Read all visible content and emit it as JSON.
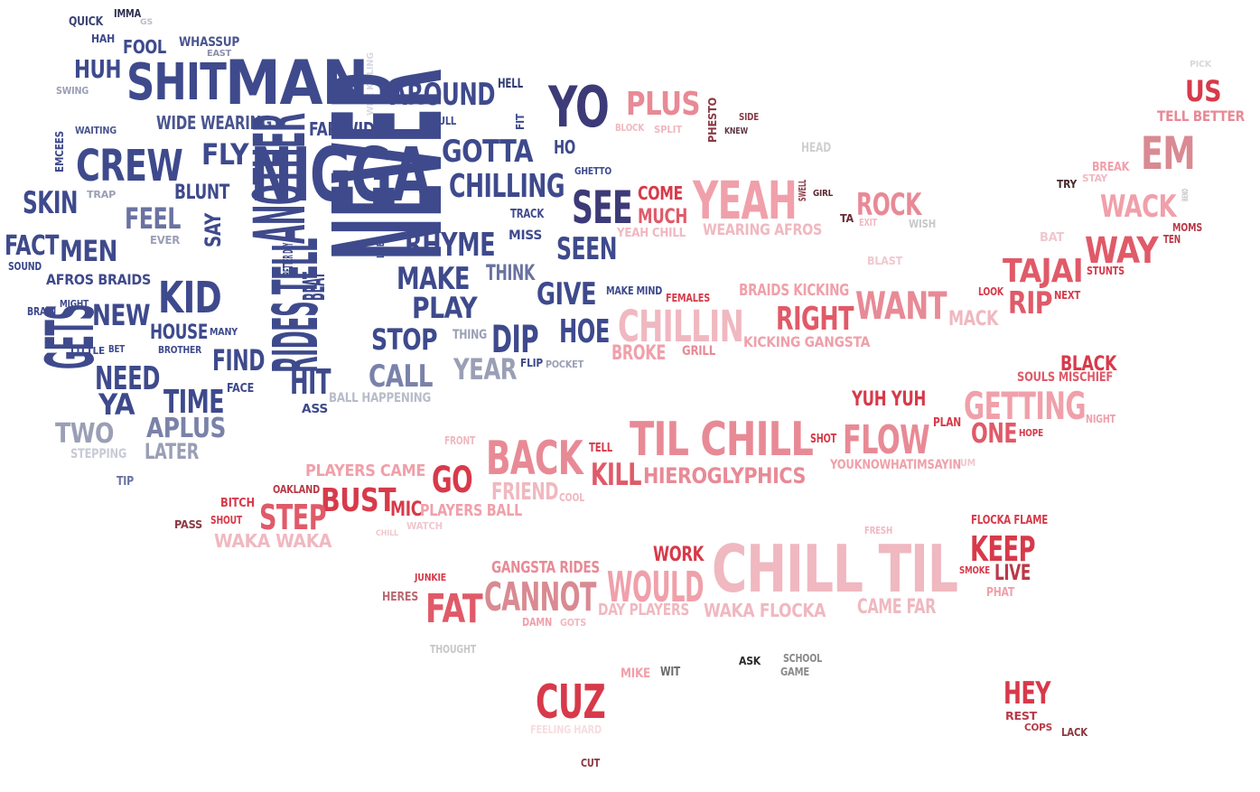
{
  "words": [
    {
      "text": "QUICK",
      "color": "#3a4275"
    },
    {
      "text": "IMMA",
      "color": "#2c2f4f"
    },
    {
      "text": "GS",
      "color": "#b8bcc9"
    },
    {
      "text": "HAH",
      "color": "#3e4a8c"
    },
    {
      "text": "FOOL",
      "color": "#3e4a8c"
    },
    {
      "text": "WHASSUP",
      "color": "#4a558f"
    },
    {
      "text": "EAST",
      "color": "#8a90ad"
    },
    {
      "text": "HUH",
      "color": "#3e4a8c"
    },
    {
      "text": "SWING",
      "color": "#9a9fb5"
    },
    {
      "text": "SHIT",
      "color": "#3e4a8c"
    },
    {
      "text": "MAN",
      "color": "#3e4a8c"
    },
    {
      "text": "WHE KILLING",
      "color": "#d7d9e3"
    },
    {
      "text": "WIDE WEARING",
      "color": "#4a558f"
    },
    {
      "text": "FAR WIDE",
      "color": "#3e4a8c"
    },
    {
      "text": "AROUND",
      "color": "#3e4a8c"
    },
    {
      "text": "HELL",
      "color": "#2f3a70"
    },
    {
      "text": "PULL",
      "color": "#3e4a8c"
    },
    {
      "text": "FIT",
      "color": "#3e4a8c"
    },
    {
      "text": "YO",
      "color": "#3d3a78"
    },
    {
      "text": "PLUS",
      "color": "#e88a96"
    },
    {
      "text": "PHESTO",
      "color": "#8a3a44"
    },
    {
      "text": "SIDE",
      "color": "#8a3a44"
    },
    {
      "text": "KNEW",
      "color": "#5e3a44"
    },
    {
      "text": "BLOCK",
      "color": "#f0b8c0"
    },
    {
      "text": "SPLIT",
      "color": "#f0b8c0"
    },
    {
      "text": "PICK",
      "color": "#d8d8d8"
    },
    {
      "text": "US",
      "color": "#d73a4a"
    },
    {
      "text": "TELL BETTER",
      "color": "#e88a96"
    },
    {
      "text": "WAITING",
      "color": "#4a558f"
    },
    {
      "text": "EMCEES",
      "color": "#3e4a8c"
    },
    {
      "text": "CREW",
      "color": "#3e4a8c"
    },
    {
      "text": "FLY",
      "color": "#3e4a8c"
    },
    {
      "text": "NIGGA",
      "color": "#3e4a8c"
    },
    {
      "text": "GOTTA",
      "color": "#3e4a8c"
    },
    {
      "text": "HO",
      "color": "#3e4a8c"
    },
    {
      "text": "HEAD",
      "color": "#d0d0d0"
    },
    {
      "text": "EM",
      "color": "#d98a92"
    },
    {
      "text": "SKIN",
      "color": "#3e4a8c"
    },
    {
      "text": "TRAP",
      "color": "#9a9fb5"
    },
    {
      "text": "BLUNT",
      "color": "#3e4a8c"
    },
    {
      "text": "FEEL",
      "color": "#6a72a0"
    },
    {
      "text": "CHILLING",
      "color": "#3e4a8c"
    },
    {
      "text": "GHETTO",
      "color": "#3e4a8c"
    },
    {
      "text": "SEE",
      "color": "#3d3a78"
    },
    {
      "text": "COME",
      "color": "#d73a4a"
    },
    {
      "text": "MUCH",
      "color": "#e05a68"
    },
    {
      "text": "YEAH",
      "color": "#f0a0aa"
    },
    {
      "text": "SWELL",
      "color": "#8a3a44"
    },
    {
      "text": "GIRL",
      "color": "#5e2a34"
    },
    {
      "text": "ROCK",
      "color": "#e88a96"
    },
    {
      "text": "BREAK",
      "color": "#f0a0aa"
    },
    {
      "text": "STAY",
      "color": "#f0b8c0"
    },
    {
      "text": "TRY",
      "color": "#4a2a2e"
    },
    {
      "text": "WACK",
      "color": "#f0a0aa"
    },
    {
      "text": "BEND",
      "color": "#c8c8c8"
    },
    {
      "text": "SAY",
      "color": "#3e4a8c"
    },
    {
      "text": "ANOTHER",
      "color": "#3e4a8c"
    },
    {
      "text": "NEVER",
      "color": "#3e4a8c"
    },
    {
      "text": "TRACK",
      "color": "#3e4a8c"
    },
    {
      "text": "TA",
      "color": "#6a2a34"
    },
    {
      "text": "EXIT",
      "color": "#f0b8c0"
    },
    {
      "text": "WISH",
      "color": "#c8c8c8"
    },
    {
      "text": "MOMS",
      "color": "#b83a48"
    },
    {
      "text": "FACT",
      "color": "#3e4a8c"
    },
    {
      "text": "SOUND",
      "color": "#3e4a8c"
    },
    {
      "text": "MEN",
      "color": "#3e4a8c"
    },
    {
      "text": "EVER",
      "color": "#9a9fb5"
    },
    {
      "text": "BETTER DAY",
      "color": "#3e4a8c"
    },
    {
      "text": "LIFE",
      "color": "#3e4a8c"
    },
    {
      "text": "RHYME",
      "color": "#3e4a8c"
    },
    {
      "text": "MISS",
      "color": "#3e4a8c"
    },
    {
      "text": "SEEN",
      "color": "#3e4a8c"
    },
    {
      "text": "YEAH CHILL",
      "color": "#f0b8c0"
    },
    {
      "text": "WEARING AFROS",
      "color": "#f0b8c0"
    },
    {
      "text": "BAT",
      "color": "#f0c8ce"
    },
    {
      "text": "WAY",
      "color": "#e05a68"
    },
    {
      "text": "TEN",
      "color": "#b83a48"
    },
    {
      "text": "BLAST",
      "color": "#f0c8ce"
    },
    {
      "text": "TAJAI",
      "color": "#e05a68"
    },
    {
      "text": "STUNTS",
      "color": "#d73a4a"
    },
    {
      "text": "AFROS BRAIDS",
      "color": "#3e4a8c"
    },
    {
      "text": "BRAIN",
      "color": "#3e4a8c"
    },
    {
      "text": "MIGHT",
      "color": "#3e4a8c"
    },
    {
      "text": "NEW",
      "color": "#3e4a8c"
    },
    {
      "text": "KID",
      "color": "#3e4a8c"
    },
    {
      "text": "MAKE",
      "color": "#3e4a8c"
    },
    {
      "text": "PLAY",
      "color": "#3e4a8c"
    },
    {
      "text": "THINK",
      "color": "#6a72a0"
    },
    {
      "text": "GIVE",
      "color": "#3e4a8c"
    },
    {
      "text": "MAKE MIND",
      "color": "#3e4a8c"
    },
    {
      "text": "FEMALES",
      "color": "#d73a4a"
    },
    {
      "text": "BRAIDS KICKING",
      "color": "#f0a0aa"
    },
    {
      "text": "WANT",
      "color": "#e88a96"
    },
    {
      "text": "LOOK",
      "color": "#d73a4a"
    },
    {
      "text": "RIP",
      "color": "#e05a68"
    },
    {
      "text": "NEXT",
      "color": "#d73a4a"
    },
    {
      "text": "MACK",
      "color": "#f0b8c0"
    },
    {
      "text": "BEAT",
      "color": "#3e4a8c"
    },
    {
      "text": "CHILLIN",
      "color": "#f0b8c0"
    },
    {
      "text": "RIGHT",
      "color": "#e05a68"
    },
    {
      "text": "HOUSE",
      "color": "#3e4a8c"
    },
    {
      "text": "MANY",
      "color": "#3e4a8c"
    },
    {
      "text": "LITTLE",
      "color": "#3e4a8c"
    },
    {
      "text": "BET",
      "color": "#3e4a8c"
    },
    {
      "text": "BROTHER",
      "color": "#3e4a8c"
    },
    {
      "text": "THING",
      "color": "#9a9fb5"
    },
    {
      "text": "STOP",
      "color": "#3e4a8c"
    },
    {
      "text": "DIP",
      "color": "#3e4a8c"
    },
    {
      "text": "HOE",
      "color": "#3e4a8c"
    },
    {
      "text": "GRILL",
      "color": "#e88a96"
    },
    {
      "text": "BROKE",
      "color": "#f0a0aa"
    },
    {
      "text": "KICKING GANGSTA",
      "color": "#f0a0aa"
    },
    {
      "text": "GETS",
      "color": "#3e4a8c"
    },
    {
      "text": "NEED",
      "color": "#3e4a8c"
    },
    {
      "text": "FIND",
      "color": "#3e4a8c"
    },
    {
      "text": "RIDES TELL",
      "color": "#3e4a8c"
    },
    {
      "text": "HIT",
      "color": "#3e4a8c"
    },
    {
      "text": "CALL",
      "color": "#7a82aa"
    },
    {
      "text": "YEAR",
      "color": "#9a9fb5"
    },
    {
      "text": "FLIP",
      "color": "#3e4a8c"
    },
    {
      "text": "POCKET",
      "color": "#9a9fb5"
    },
    {
      "text": "BLACK",
      "color": "#d73a4a"
    },
    {
      "text": "SOULS MISCHIEF",
      "color": "#e05a68"
    },
    {
      "text": "YA",
      "color": "#3e4a8c"
    },
    {
      "text": "TIME",
      "color": "#3e4a8c"
    },
    {
      "text": "FACE",
      "color": "#3e4a8c"
    },
    {
      "text": "ASS",
      "color": "#3e4a8c"
    },
    {
      "text": "BALL HAPPENING",
      "color": "#b8bcc9"
    },
    {
      "text": "YUH YUH",
      "color": "#d73a4a"
    },
    {
      "text": "GETTING",
      "color": "#f0a0aa"
    },
    {
      "text": "NIGHT",
      "color": "#f0a0aa"
    },
    {
      "text": "TWO",
      "color": "#9a9fb5"
    },
    {
      "text": "APLUS",
      "color": "#7a82aa"
    },
    {
      "text": "FRONT",
      "color": "#f0b8c0"
    },
    {
      "text": "TIL CHILL",
      "color": "#e88a96"
    },
    {
      "text": "PLAN",
      "color": "#d73a4a"
    },
    {
      "text": "ONE",
      "color": "#e05a68"
    },
    {
      "text": "HOPE",
      "color": "#d73a4a"
    },
    {
      "text": "STEPPING",
      "color": "#c8cad6"
    },
    {
      "text": "LATER",
      "color": "#9a9fb5"
    },
    {
      "text": "BACK",
      "color": "#e88a96"
    },
    {
      "text": "TELL",
      "color": "#d73a4a"
    },
    {
      "text": "SHOT",
      "color": "#d73a4a"
    },
    {
      "text": "FLOW",
      "color": "#e88a96"
    },
    {
      "text": "YOUKNOWHATIMSAYIN",
      "color": "#f0a0aa"
    },
    {
      "text": "UM",
      "color": "#f0c8ce"
    },
    {
      "text": "TIP",
      "color": "#6a72a0"
    },
    {
      "text": "PLAYERS CAME",
      "color": "#f0a0aa"
    },
    {
      "text": "GO",
      "color": "#d73a4a"
    },
    {
      "text": "KILL",
      "color": "#e05a68"
    },
    {
      "text": "HIEROGLYPHICS",
      "color": "#e88a96"
    },
    {
      "text": "OAKLAND",
      "color": "#b83a48"
    },
    {
      "text": "BITCH",
      "color": "#d73a4a"
    },
    {
      "text": "BUST",
      "color": "#d73a4a"
    },
    {
      "text": "FRIEND",
      "color": "#f0b8c0"
    },
    {
      "text": "COOL",
      "color": "#f0b8c0"
    },
    {
      "text": "STEP",
      "color": "#e05a68"
    },
    {
      "text": "MIC",
      "color": "#d73a4a"
    },
    {
      "text": "PLAYERS BALL",
      "color": "#f0a0aa"
    },
    {
      "text": "PASS",
      "color": "#8a3a44"
    },
    {
      "text": "SHOUT",
      "color": "#d73a4a"
    },
    {
      "text": "CHILL",
      "color": "#f0c8ce"
    },
    {
      "text": "WATCH",
      "color": "#f0c8ce"
    },
    {
      "text": "FRESH",
      "color": "#f0b8c0"
    },
    {
      "text": "FLOCKA FLAME",
      "color": "#d73a4a"
    },
    {
      "text": "WAKA WAKA",
      "color": "#f0b8c0"
    },
    {
      "text": "KEEP",
      "color": "#d73a4a"
    },
    {
      "text": "WORK",
      "color": "#d73a4a"
    },
    {
      "text": "CHILL TIL",
      "color": "#f0b8c0"
    },
    {
      "text": "SMOKE",
      "color": "#d73a4a"
    },
    {
      "text": "LIVE",
      "color": "#b83a48"
    },
    {
      "text": "JUNKIE",
      "color": "#d73a4a"
    },
    {
      "text": "GANGSTA RIDES",
      "color": "#e88a96"
    },
    {
      "text": "HERES",
      "color": "#b86a74"
    },
    {
      "text": "CANNOT",
      "color": "#d98a92"
    },
    {
      "text": "WOULD",
      "color": "#f0a0aa"
    },
    {
      "text": "PHAT",
      "color": "#f0a0aa"
    },
    {
      "text": "FAT",
      "color": "#e05a68"
    },
    {
      "text": "DAY PLAYERS",
      "color": "#f0b8c0"
    },
    {
      "text": "WAKA FLOCKA",
      "color": "#f0b8c0"
    },
    {
      "text": "CAME FAR",
      "color": "#f0b8c0"
    },
    {
      "text": "DAMN",
      "color": "#f0a0aa"
    },
    {
      "text": "GOTS",
      "color": "#f0b8c0"
    },
    {
      "text": "THOUGHT",
      "color": "#c8c8c8"
    },
    {
      "text": "ASK",
      "color": "#2a2a2a"
    },
    {
      "text": "SCHOOL",
      "color": "#8a8a8a"
    },
    {
      "text": "GAME",
      "color": "#8a8a8a"
    },
    {
      "text": "MIKE",
      "color": "#f0a0aa"
    },
    {
      "text": "WIT",
      "color": "#6a6a6a"
    },
    {
      "text": "CUZ",
      "color": "#d73a4a"
    },
    {
      "text": "HEY",
      "color": "#d73a4a"
    },
    {
      "text": "REST",
      "color": "#b83a48"
    },
    {
      "text": "COPS",
      "color": "#b83a48"
    },
    {
      "text": "LACK",
      "color": "#8a3a44"
    },
    {
      "text": "FEELING HARD",
      "color": "#f6dde1"
    },
    {
      "text": "CUT",
      "color": "#8a3a44"
    }
  ]
}
